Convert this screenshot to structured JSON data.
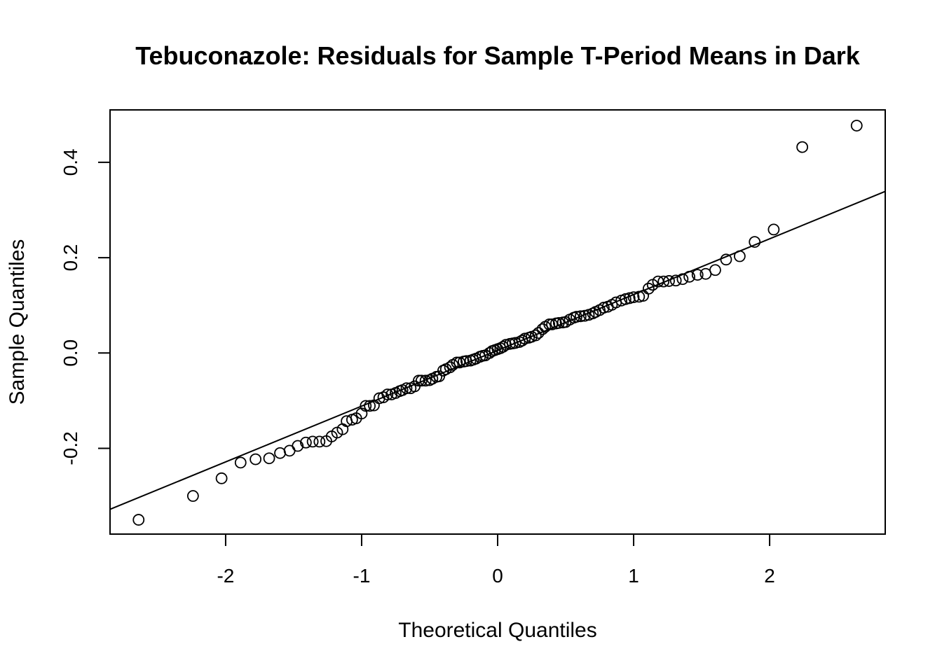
{
  "chart_data": {
    "type": "scatter",
    "title": "Tebuconazole: Residuals for Sample T-Period Means in Dark",
    "xlabel": "Theoretical Quantiles",
    "ylabel": "Sample Quantiles",
    "xlim": [
      -2.85,
      2.85
    ],
    "ylim": [
      -0.38,
      0.51
    ],
    "x_ticks": [
      -2,
      -1,
      0,
      1,
      2
    ],
    "x_tick_labels": [
      "-2",
      "-1",
      "0",
      "1",
      "2"
    ],
    "y_ticks": [
      -0.2,
      0.0,
      0.2,
      0.4
    ],
    "y_tick_labels": [
      "-0.2",
      "0.0",
      "0.2",
      "0.4"
    ],
    "grid": false,
    "legend": "none",
    "reference_line": {
      "x": [
        -2.85,
        2.85
      ],
      "y": [
        -0.328,
        0.339
      ]
    },
    "points": [
      [
        -2.64,
        -0.35
      ],
      [
        -2.24,
        -0.3
      ],
      [
        -2.03,
        -0.263
      ],
      [
        -1.89,
        -0.23
      ],
      [
        -1.78,
        -0.223
      ],
      [
        -1.68,
        -0.221
      ],
      [
        -1.6,
        -0.21
      ],
      [
        -1.53,
        -0.205
      ],
      [
        -1.47,
        -0.195
      ],
      [
        -1.41,
        -0.188
      ],
      [
        -1.36,
        -0.186
      ],
      [
        -1.31,
        -0.186
      ],
      [
        -1.26,
        -0.185
      ],
      [
        -1.22,
        -0.175
      ],
      [
        -1.18,
        -0.167
      ],
      [
        -1.14,
        -0.16
      ],
      [
        -1.11,
        -0.143
      ],
      [
        -1.07,
        -0.14
      ],
      [
        -1.04,
        -0.137
      ],
      [
        -1.0,
        -0.127
      ],
      [
        -0.97,
        -0.111
      ],
      [
        -0.94,
        -0.111
      ],
      [
        -0.91,
        -0.11
      ],
      [
        -0.87,
        -0.095
      ],
      [
        -0.84,
        -0.093
      ],
      [
        -0.81,
        -0.087
      ],
      [
        -0.78,
        -0.087
      ],
      [
        -0.75,
        -0.084
      ],
      [
        -0.72,
        -0.08
      ],
      [
        -0.7,
        -0.078
      ],
      [
        -0.67,
        -0.074
      ],
      [
        -0.64,
        -0.074
      ],
      [
        -0.61,
        -0.07
      ],
      [
        -0.58,
        -0.058
      ],
      [
        -0.56,
        -0.058
      ],
      [
        -0.53,
        -0.058
      ],
      [
        -0.5,
        -0.057
      ],
      [
        -0.48,
        -0.054
      ],
      [
        -0.45,
        -0.05
      ],
      [
        -0.43,
        -0.049
      ],
      [
        -0.4,
        -0.037
      ],
      [
        -0.38,
        -0.034
      ],
      [
        -0.35,
        -0.03
      ],
      [
        -0.33,
        -0.025
      ],
      [
        -0.3,
        -0.02
      ],
      [
        -0.28,
        -0.02
      ],
      [
        -0.25,
        -0.018
      ],
      [
        -0.23,
        -0.017
      ],
      [
        -0.2,
        -0.016
      ],
      [
        -0.18,
        -0.014
      ],
      [
        -0.16,
        -0.012
      ],
      [
        -0.13,
        -0.008
      ],
      [
        -0.11,
        -0.006
      ],
      [
        -0.09,
        -0.005
      ],
      [
        -0.06,
        0.0
      ],
      [
        -0.04,
        0.004
      ],
      [
        -0.02,
        0.006
      ],
      [
        0.0,
        0.008
      ],
      [
        0.02,
        0.01
      ],
      [
        0.04,
        0.013
      ],
      [
        0.06,
        0.017
      ],
      [
        0.09,
        0.019
      ],
      [
        0.11,
        0.02
      ],
      [
        0.13,
        0.021
      ],
      [
        0.16,
        0.023
      ],
      [
        0.18,
        0.026
      ],
      [
        0.2,
        0.03
      ],
      [
        0.23,
        0.032
      ],
      [
        0.25,
        0.034
      ],
      [
        0.28,
        0.037
      ],
      [
        0.3,
        0.042
      ],
      [
        0.33,
        0.05
      ],
      [
        0.35,
        0.055
      ],
      [
        0.38,
        0.06
      ],
      [
        0.4,
        0.06
      ],
      [
        0.43,
        0.062
      ],
      [
        0.45,
        0.063
      ],
      [
        0.48,
        0.064
      ],
      [
        0.5,
        0.065
      ],
      [
        0.53,
        0.07
      ],
      [
        0.56,
        0.074
      ],
      [
        0.58,
        0.076
      ],
      [
        0.61,
        0.077
      ],
      [
        0.64,
        0.078
      ],
      [
        0.67,
        0.08
      ],
      [
        0.7,
        0.083
      ],
      [
        0.72,
        0.086
      ],
      [
        0.75,
        0.09
      ],
      [
        0.78,
        0.095
      ],
      [
        0.81,
        0.097
      ],
      [
        0.84,
        0.101
      ],
      [
        0.87,
        0.106
      ],
      [
        0.91,
        0.11
      ],
      [
        0.94,
        0.113
      ],
      [
        0.97,
        0.115
      ],
      [
        1.0,
        0.117
      ],
      [
        1.04,
        0.118
      ],
      [
        1.07,
        0.12
      ],
      [
        1.11,
        0.135
      ],
      [
        1.14,
        0.143
      ],
      [
        1.18,
        0.15
      ],
      [
        1.22,
        0.15
      ],
      [
        1.26,
        0.151
      ],
      [
        1.31,
        0.152
      ],
      [
        1.36,
        0.155
      ],
      [
        1.41,
        0.16
      ],
      [
        1.47,
        0.164
      ],
      [
        1.53,
        0.166
      ],
      [
        1.6,
        0.174
      ],
      [
        1.68,
        0.196
      ],
      [
        1.78,
        0.203
      ],
      [
        1.89,
        0.233
      ],
      [
        2.03,
        0.259
      ],
      [
        2.24,
        0.432
      ],
      [
        2.64,
        0.477
      ]
    ]
  }
}
